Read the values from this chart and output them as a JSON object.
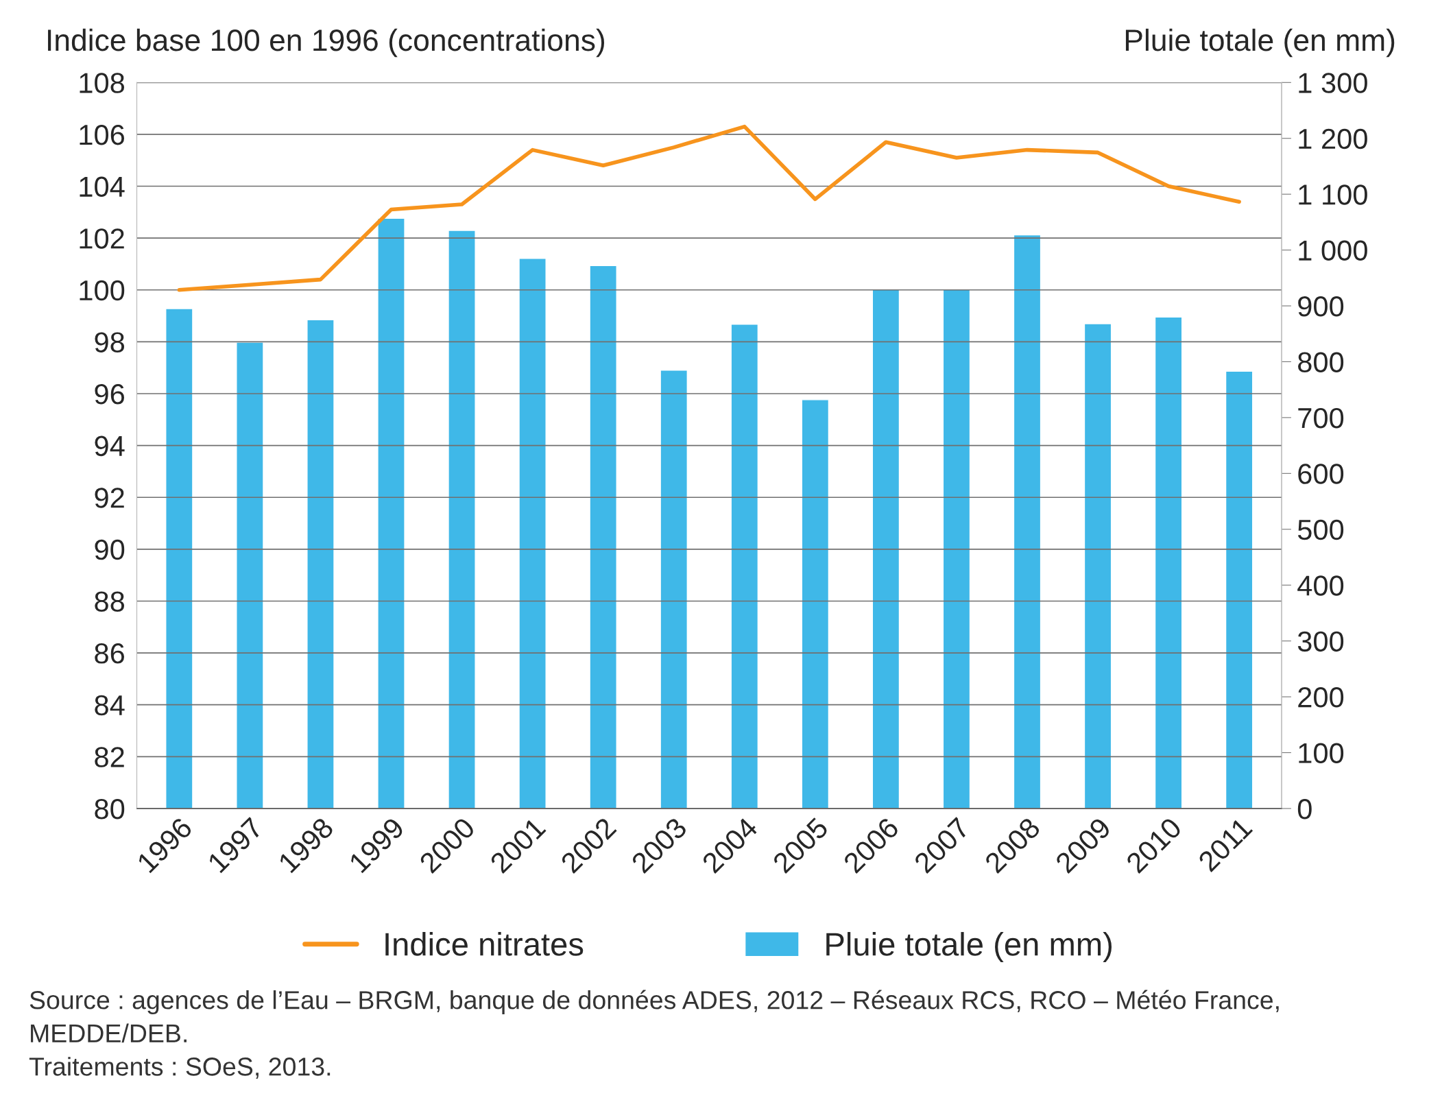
{
  "chart_data": {
    "type": "bar",
    "ylabel": "Indice base 100 en 1996 (concentrations)",
    "y2label": "Pluie totale (en mm)",
    "categories": [
      "1996",
      "1997",
      "1998",
      "1999",
      "2000",
      "2001",
      "2002",
      "2003",
      "2004",
      "2005",
      "2006",
      "2007",
      "2008",
      "2009",
      "2010",
      "2011"
    ],
    "series": [
      {
        "name": "Indice nitrates",
        "type": "line",
        "color": "#f7941d",
        "values": [
          100.0,
          100.2,
          100.4,
          103.1,
          103.3,
          105.4,
          104.8,
          105.5,
          106.3,
          103.5,
          105.7,
          105.1,
          105.4,
          105.3,
          104.0,
          103.4
        ]
      },
      {
        "name": "Pluie totale (en mm)",
        "axis": "y2",
        "color": "#3fb8e8",
        "values": [
          895,
          835,
          875,
          1057,
          1035,
          985,
          972,
          785,
          867,
          732,
          930,
          930,
          1027,
          868,
          880,
          783
        ]
      }
    ],
    "ylim": [
      80,
      108
    ],
    "yticks": [
      80,
      82,
      84,
      86,
      88,
      90,
      92,
      94,
      96,
      98,
      100,
      102,
      104,
      106,
      108
    ],
    "y2lim": [
      0,
      1300
    ],
    "y2ticks": [
      0,
      100,
      200,
      300,
      400,
      500,
      600,
      700,
      800,
      900,
      {
        "value": 1000,
        "label": "1 000"
      },
      {
        "value": 1100,
        "label": "1 100"
      },
      {
        "value": 1200,
        "label": "1 200"
      },
      {
        "value": 1300,
        "label": "1 300"
      }
    ],
    "grid": "y",
    "legend": "bottom",
    "marker": "none",
    "line_style": "solid",
    "annotations": [
      "Source : agences de l’Eau – BRGM, banque de données ADES, 2012 – Réseaux RCS, RCO – Météo France, MEDDE/DEB.\nTraitements : SOeS, 2013."
    ]
  }
}
